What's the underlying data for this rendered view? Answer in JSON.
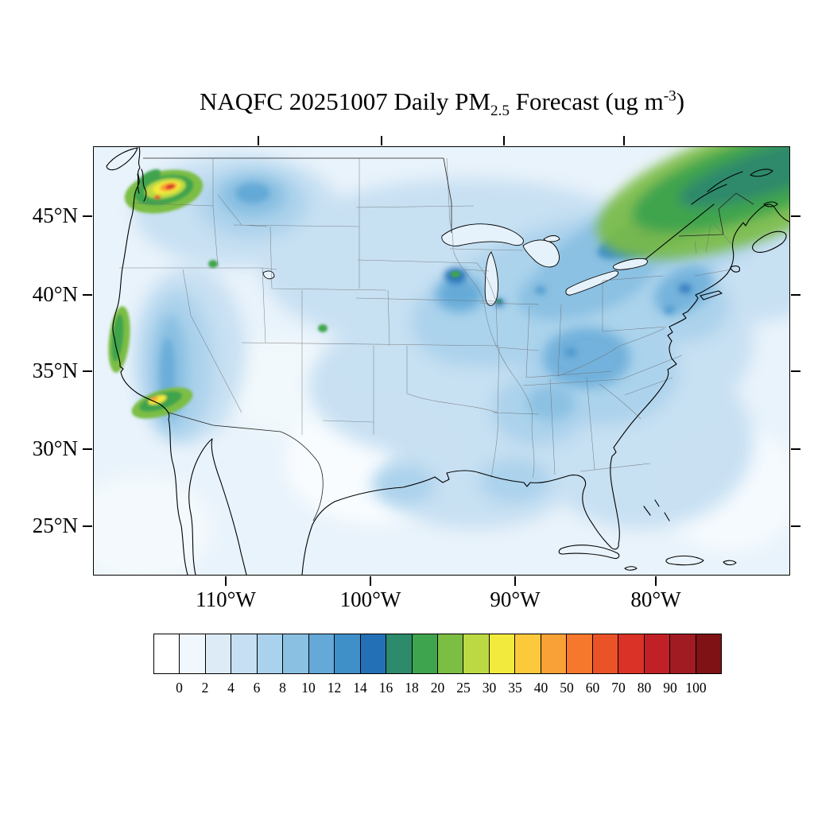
{
  "title": {
    "prefix": "NAQFC 20251007 Daily PM",
    "subscript": "2.5",
    "middle": " Forecast (ug m",
    "superscript": "-3",
    "suffix": ")"
  },
  "map": {
    "y_axis_labels": [
      "45°N",
      "40°N",
      "35°N",
      "30°N",
      "25°N"
    ],
    "x_axis_labels": [
      "110°W",
      "100°W",
      "90°W",
      "80°W"
    ]
  },
  "colorbar": {
    "levels": [
      "0",
      "2",
      "4",
      "6",
      "8",
      "10",
      "12",
      "14",
      "16",
      "18",
      "20",
      "25",
      "30",
      "35",
      "40",
      "50",
      "60",
      "70",
      "80",
      "90",
      "100"
    ],
    "colors": [
      "#ffffff",
      "#f0f7fd",
      "#ddebf7",
      "#c6dff2",
      "#aad2ec",
      "#8ac0e2",
      "#64a9d7",
      "#3f8fc8",
      "#2470b6",
      "#2d8a6b",
      "#3fa44e",
      "#7cbd44",
      "#bcd943",
      "#f2ea3c",
      "#fbc93b",
      "#f9a037",
      "#f5782d",
      "#ea5328",
      "#da3226",
      "#c12026",
      "#a01b22",
      "#7e1215"
    ]
  },
  "chart_data": {
    "type": "heatmap",
    "title": "NAQFC 20251007 Daily PM2.5 Forecast (ug m-3)",
    "model": "NAQFC",
    "date": "20251007",
    "variable": "Daily PM2.5",
    "units": "ug m-3",
    "projection": "Lambert conformal over CONUS",
    "x_ticks": [
      "110°W",
      "100°W",
      "90°W",
      "80°W"
    ],
    "y_ticks": [
      "45°N",
      "40°N",
      "35°N",
      "30°N",
      "25°N"
    ],
    "colorbar_levels": [
      0,
      2,
      4,
      6,
      8,
      10,
      12,
      14,
      16,
      18,
      20,
      25,
      30,
      35,
      40,
      50,
      60,
      70,
      80,
      90,
      100
    ],
    "legend_position": "bottom",
    "notable_features": [
      {
        "region": "Western Washington / Cascades",
        "approx_lat": 47.5,
        "approx_lon": -122,
        "peak_value": "90-100+",
        "description": "small red/orange hotspot ringed by yellow and green"
      },
      {
        "region": "Southern California coast (LA-San Diego)",
        "approx_lat": 33.5,
        "approx_lon": -117.5,
        "peak_value": "30-40",
        "description": "green patch with small yellow-orange core"
      },
      {
        "region": "Northern/central California coast",
        "approx_lat": 37.5,
        "approx_lon": -122.5,
        "peak_value": "16-25",
        "description": "narrow green streak along coast"
      },
      {
        "region": "Southern Quebec / Maine / Gulf of St. Lawrence",
        "peak_value": "16-25",
        "description": "broad green band across upper-right corner"
      },
      {
        "region": "St. Lawrence valley into Upper Midwest",
        "peak_value": "10-16",
        "description": "diagonal dark blue band"
      },
      {
        "region": "Midwest and Mississippi valley patches",
        "peak_value": "6-12",
        "description": "scattered medium blue areas"
      },
      {
        "region": "Most of CONUS background",
        "peak_value": "0-6",
        "description": "pale to light blue"
      }
    ]
  }
}
